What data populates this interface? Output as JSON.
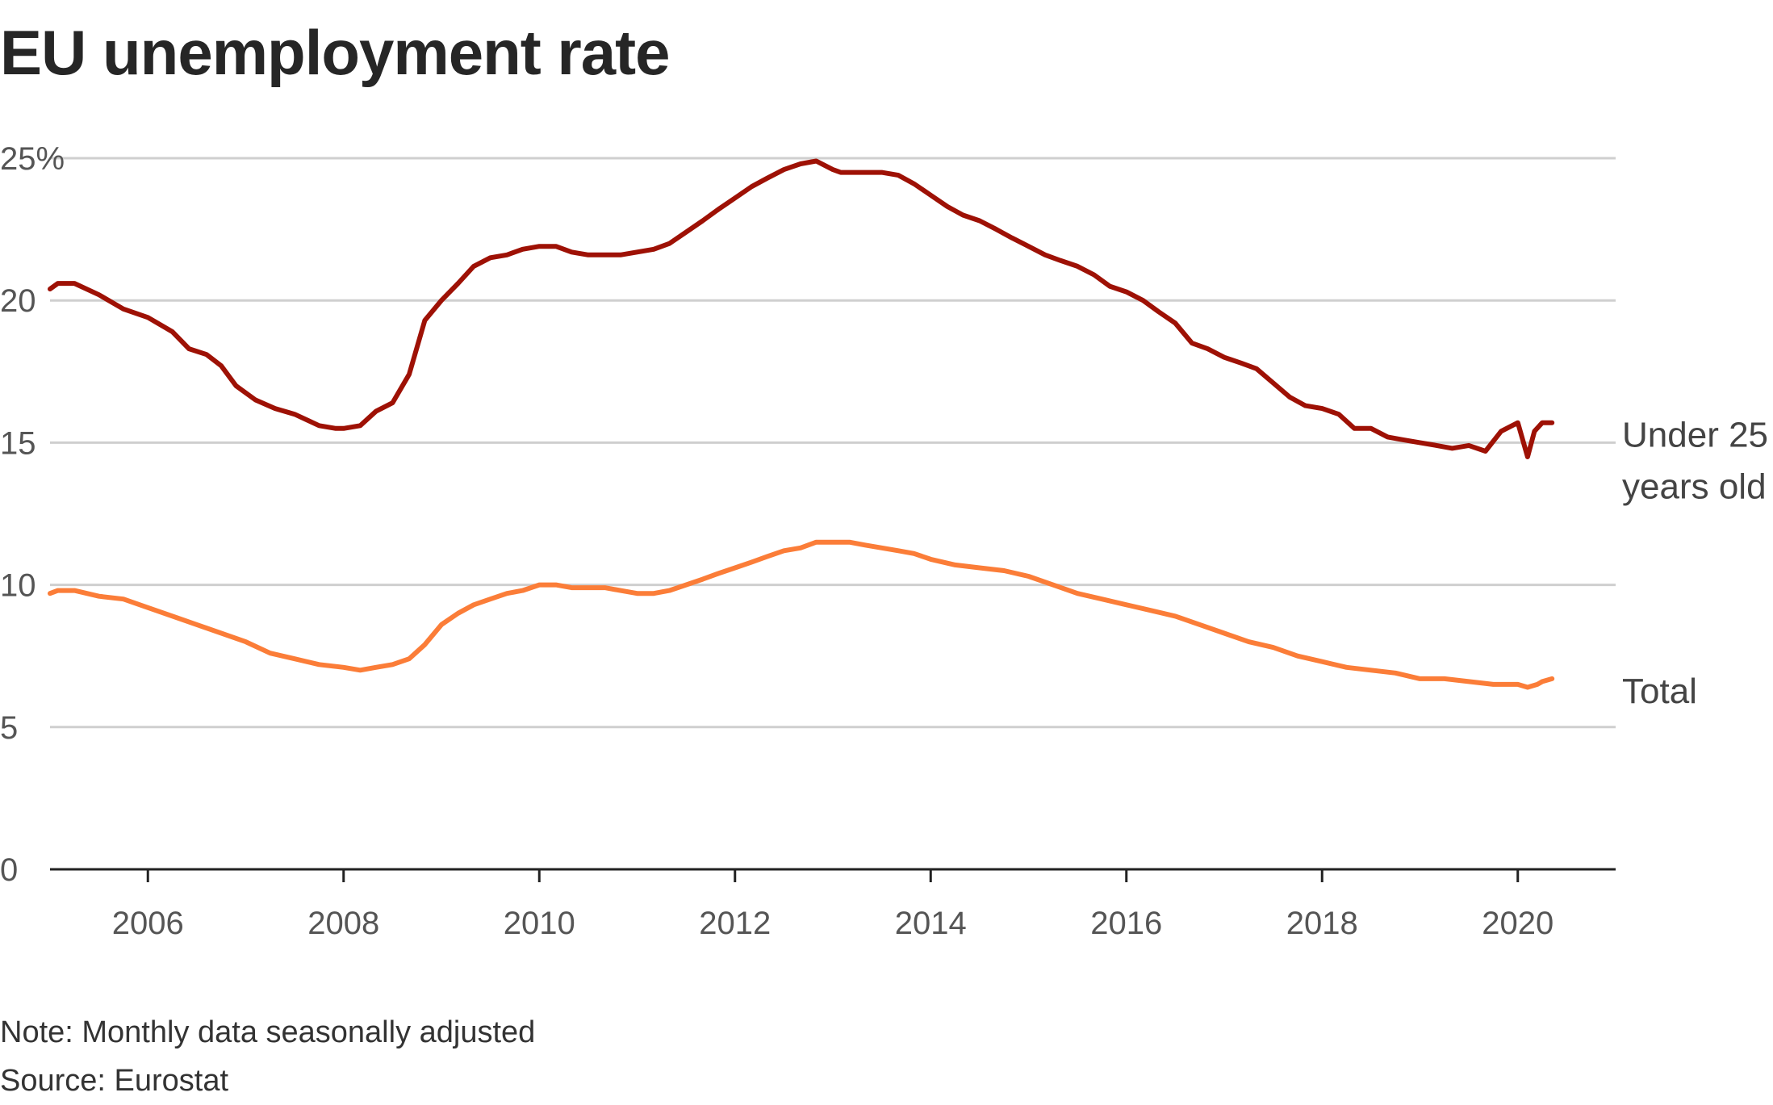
{
  "title": "EU unemployment rate",
  "note": "Note: Monthly data seasonally adjusted",
  "source": "Source: Eurostat",
  "chart_data": {
    "type": "line",
    "title": "EU unemployment rate",
    "xlabel": "",
    "ylabel": "",
    "ylim": [
      0,
      25
    ],
    "xlim": [
      2005.0,
      2021.0
    ],
    "grid": true,
    "y_ticks": [
      0,
      5,
      10,
      15,
      20,
      25
    ],
    "y_tick_labels": [
      "0",
      "5",
      "10",
      "15",
      "20",
      "25%"
    ],
    "x_ticks": [
      2006,
      2008,
      2010,
      2012,
      2014,
      2016,
      2018,
      2020
    ],
    "x_tick_labels": [
      "2006",
      "2008",
      "2010",
      "2012",
      "2014",
      "2016",
      "2018",
      "2020"
    ],
    "series": [
      {
        "name": "Under 25 years old",
        "label_lines": [
          "Under 25",
          "years old"
        ],
        "color": "#9e1105",
        "x": [
          2005.0,
          2005.08,
          2005.25,
          2005.5,
          2005.75,
          2006.0,
          2006.25,
          2006.42,
          2006.6,
          2006.75,
          2006.9,
          2007.1,
          2007.3,
          2007.5,
          2007.75,
          2007.92,
          2008.0,
          2008.17,
          2008.33,
          2008.5,
          2008.67,
          2008.83,
          2009.0,
          2009.17,
          2009.33,
          2009.5,
          2009.67,
          2009.83,
          2010.0,
          2010.17,
          2010.33,
          2010.5,
          2010.67,
          2010.83,
          2011.0,
          2011.17,
          2011.33,
          2011.5,
          2011.67,
          2011.83,
          2012.0,
          2012.17,
          2012.33,
          2012.5,
          2012.67,
          2012.83,
          2013.0,
          2013.08,
          2013.17,
          2013.33,
          2013.5,
          2013.67,
          2013.83,
          2014.0,
          2014.17,
          2014.33,
          2014.5,
          2014.67,
          2014.83,
          2015.0,
          2015.17,
          2015.33,
          2015.5,
          2015.67,
          2015.83,
          2016.0,
          2016.17,
          2016.33,
          2016.5,
          2016.67,
          2016.83,
          2017.0,
          2017.17,
          2017.33,
          2017.5,
          2017.67,
          2017.83,
          2018.0,
          2018.17,
          2018.33,
          2018.5,
          2018.67,
          2018.83,
          2019.0,
          2019.17,
          2019.33,
          2019.5,
          2019.67,
          2019.83,
          2020.0,
          2020.1,
          2020.17,
          2020.25,
          2020.35
        ],
        "values": [
          20.4,
          20.6,
          20.6,
          20.2,
          19.7,
          19.4,
          18.9,
          18.3,
          18.1,
          17.7,
          17.0,
          16.5,
          16.2,
          16.0,
          15.6,
          15.5,
          15.5,
          15.6,
          16.1,
          16.4,
          17.4,
          19.3,
          20.0,
          20.6,
          21.2,
          21.5,
          21.6,
          21.8,
          21.9,
          21.9,
          21.7,
          21.6,
          21.6,
          21.6,
          21.7,
          21.8,
          22.0,
          22.4,
          22.8,
          23.2,
          23.6,
          24.0,
          24.3,
          24.6,
          24.8,
          24.9,
          24.6,
          24.5,
          24.5,
          24.5,
          24.5,
          24.4,
          24.1,
          23.7,
          23.3,
          23.0,
          22.8,
          22.5,
          22.2,
          21.9,
          21.6,
          21.4,
          21.2,
          20.9,
          20.5,
          20.3,
          20.0,
          19.6,
          19.2,
          18.5,
          18.3,
          18.0,
          17.8,
          17.6,
          17.1,
          16.6,
          16.3,
          16.2,
          16.0,
          15.5,
          15.5,
          15.2,
          15.1,
          15.0,
          14.9,
          14.8,
          14.9,
          14.7,
          15.4,
          15.7,
          14.5,
          15.4,
          15.7,
          15.7
        ]
      },
      {
        "name": "Total",
        "label_lines": [
          "Total"
        ],
        "color": "#fb7d38",
        "x": [
          2005.0,
          2005.08,
          2005.25,
          2005.5,
          2005.75,
          2006.0,
          2006.5,
          2007.0,
          2007.25,
          2007.5,
          2007.75,
          2008.0,
          2008.17,
          2008.33,
          2008.5,
          2008.67,
          2008.83,
          2009.0,
          2009.17,
          2009.33,
          2009.5,
          2009.67,
          2009.83,
          2010.0,
          2010.17,
          2010.33,
          2010.5,
          2010.67,
          2010.83,
          2011.0,
          2011.17,
          2011.33,
          2011.5,
          2011.67,
          2011.83,
          2012.0,
          2012.17,
          2012.33,
          2012.5,
          2012.67,
          2012.83,
          2013.0,
          2013.17,
          2013.33,
          2013.5,
          2013.67,
          2013.83,
          2014.0,
          2014.25,
          2014.5,
          2014.75,
          2015.0,
          2015.25,
          2015.5,
          2015.75,
          2016.0,
          2016.25,
          2016.5,
          2016.75,
          2017.0,
          2017.25,
          2017.5,
          2017.75,
          2018.0,
          2018.25,
          2018.5,
          2018.75,
          2019.0,
          2019.25,
          2019.5,
          2019.75,
          2020.0,
          2020.1,
          2020.2,
          2020.25,
          2020.35
        ],
        "values": [
          9.7,
          9.8,
          9.8,
          9.6,
          9.5,
          9.2,
          8.6,
          8.0,
          7.6,
          7.4,
          7.2,
          7.1,
          7.0,
          7.1,
          7.2,
          7.4,
          7.9,
          8.6,
          9.0,
          9.3,
          9.5,
          9.7,
          9.8,
          10.0,
          10.0,
          9.9,
          9.9,
          9.9,
          9.8,
          9.7,
          9.7,
          9.8,
          10.0,
          10.2,
          10.4,
          10.6,
          10.8,
          11.0,
          11.2,
          11.3,
          11.5,
          11.5,
          11.5,
          11.4,
          11.3,
          11.2,
          11.1,
          10.9,
          10.7,
          10.6,
          10.5,
          10.3,
          10.0,
          9.7,
          9.5,
          9.3,
          9.1,
          8.9,
          8.6,
          8.3,
          8.0,
          7.8,
          7.5,
          7.3,
          7.1,
          7.0,
          6.9,
          6.7,
          6.7,
          6.6,
          6.5,
          6.5,
          6.4,
          6.5,
          6.6,
          6.7
        ]
      }
    ]
  }
}
